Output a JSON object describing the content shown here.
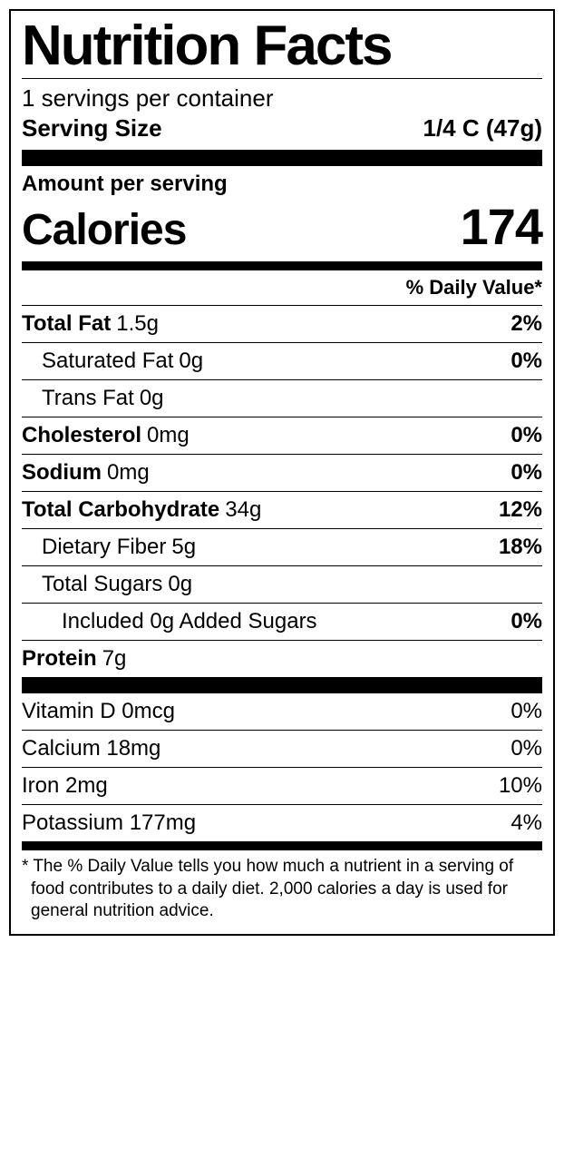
{
  "title": "Nutrition Facts",
  "servings_per_container": "1 servings per container",
  "serving_size_label": "Serving Size",
  "serving_size_value": "1/4 C (47g)",
  "amount_per_serving": "Amount per serving",
  "calories_label": "Calories",
  "calories_value": "174",
  "dv_header": "% Daily Value*",
  "nutrients": [
    {
      "name": "Total Fat",
      "amount": "1.5g",
      "dv": "2%",
      "bold": true,
      "indent": 0
    },
    {
      "name": "Saturated Fat",
      "amount": "0g",
      "dv": "0%",
      "bold": false,
      "indent": 1
    },
    {
      "name": "Trans Fat",
      "amount": "0g",
      "dv": "",
      "bold": false,
      "indent": 1
    },
    {
      "name": "Cholesterol",
      "amount": "0mg",
      "dv": "0%",
      "bold": true,
      "indent": 0
    },
    {
      "name": "Sodium",
      "amount": "0mg",
      "dv": "0%",
      "bold": true,
      "indent": 0
    },
    {
      "name": "Total Carbohydrate",
      "amount": "34g",
      "dv": "12%",
      "bold": true,
      "indent": 0
    },
    {
      "name": "Dietary Fiber",
      "amount": "5g",
      "dv": "18%",
      "bold": false,
      "indent": 1
    },
    {
      "name": "Total Sugars",
      "amount": "0g",
      "dv": "",
      "bold": false,
      "indent": 1
    },
    {
      "name": "Included 0g Added Sugars",
      "amount": "",
      "dv": "0%",
      "bold": false,
      "indent": 2
    },
    {
      "name": "Protein",
      "amount": "7g",
      "dv": "",
      "bold": true,
      "indent": 0,
      "noborder": true
    }
  ],
  "vitamins": [
    {
      "text": "Vitamin D 0mcg",
      "dv": "0%"
    },
    {
      "text": "Calcium 18mg",
      "dv": "0%"
    },
    {
      "text": "Iron 2mg",
      "dv": "10%"
    },
    {
      "text": "Potassium 177mg",
      "dv": "4%"
    }
  ],
  "footnote": "* The % Daily Value tells you how much a nutrient in a serving of food contributes to a daily diet. 2,000 calories a day is used for general nutrition advice."
}
